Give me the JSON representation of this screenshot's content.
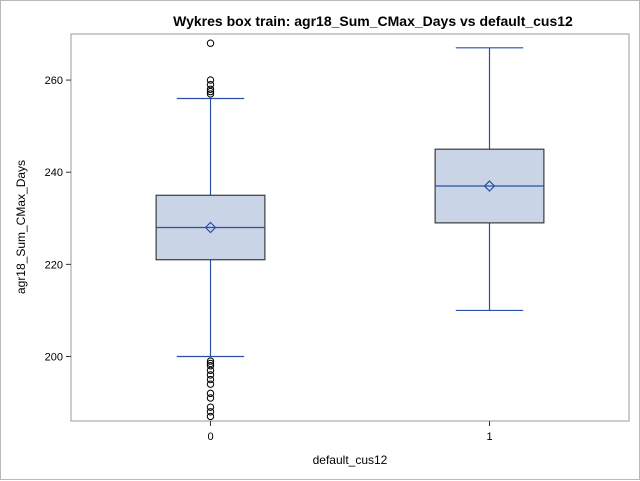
{
  "chart_data": {
    "type": "box",
    "title": "Wykres box train: agr18_Sum_CMax_Days vs default_cus12",
    "xlabel": "default_cus12",
    "ylabel": "agr18_Sum_CMax_Days",
    "ylim": [
      186,
      270
    ],
    "yticks": [
      200,
      220,
      240,
      260
    ],
    "categories": [
      "0",
      "1"
    ],
    "boxes": [
      {
        "category": "0",
        "whisker_low": 200,
        "q1": 221,
        "median": 228,
        "mean": 228,
        "q3": 235,
        "whisker_high": 256,
        "outliers": [
          268,
          260,
          259,
          258,
          257.5,
          257,
          199,
          198.5,
          198,
          197,
          196,
          195,
          194,
          192,
          191,
          189,
          188,
          187
        ]
      },
      {
        "category": "1",
        "whisker_low": 210,
        "q1": 229,
        "median": 237,
        "mean": 237,
        "q3": 245,
        "whisker_high": 267,
        "outliers": []
      }
    ],
    "grid": false,
    "colors": {
      "box_fill": "#c9d5e6",
      "box_stroke": "#2e2e2e",
      "line": "#2a4fa8",
      "outlier": "#000000"
    }
  }
}
